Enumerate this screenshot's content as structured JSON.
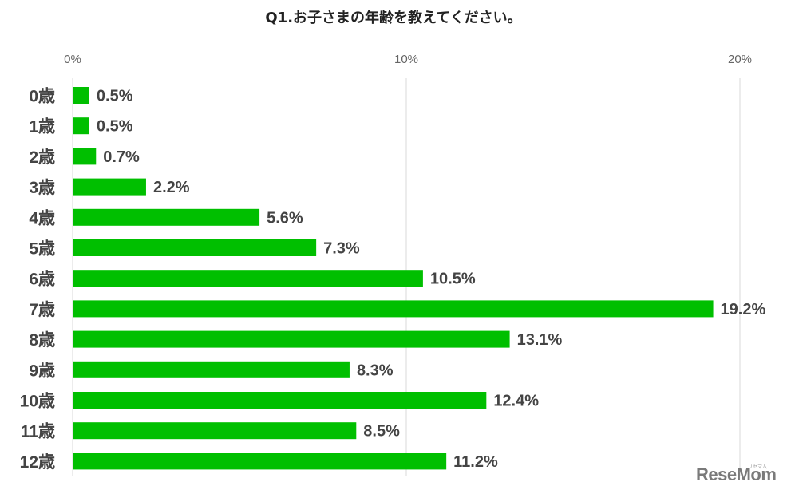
{
  "chart_data": {
    "type": "bar",
    "orientation": "horizontal",
    "title": "Q1.お子さまの年齢を教えてください。",
    "categories": [
      "0歳",
      "1歳",
      "2歳",
      "3歳",
      "4歳",
      "5歳",
      "6歳",
      "7歳",
      "8歳",
      "9歳",
      "10歳",
      "11歳",
      "12歳"
    ],
    "values": [
      0.5,
      0.5,
      0.7,
      2.2,
      5.6,
      7.3,
      10.5,
      19.2,
      13.1,
      8.3,
      12.4,
      8.5,
      11.2
    ],
    "value_labels": [
      "0.5%",
      "0.5%",
      "0.7%",
      "2.2%",
      "5.6%",
      "7.3%",
      "10.5%",
      "19.2%",
      "13.1%",
      "8.3%",
      "12.4%",
      "8.5%",
      "11.2%"
    ],
    "x_ticks": [
      0,
      10,
      20
    ],
    "x_tick_labels": [
      "0%",
      "10%",
      "20%"
    ],
    "xlim": [
      0,
      20
    ],
    "xlabel": "",
    "ylabel": "",
    "grid": "vertical",
    "axis_position": "top",
    "bar_color": "#00bf00",
    "grid_color": "#d9d9d9"
  },
  "watermark": {
    "text": "ReseMom",
    "subtext": "リセマム"
  }
}
